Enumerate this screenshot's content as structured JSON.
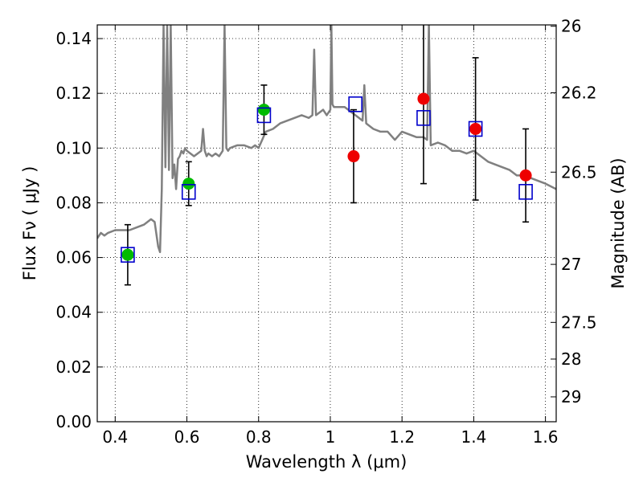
{
  "chart_data": {
    "type": "scatter",
    "xlabel": "Wavelength  λ (μm)",
    "ylabel": "Flux  Fν  ( μJy )",
    "y2label": "Magnitude (AB)",
    "xlim": [
      0.35,
      1.63
    ],
    "ylim": [
      0.0,
      0.145
    ],
    "grid": true,
    "x_ticks": [
      0.4,
      0.6,
      0.8,
      1.0,
      1.2,
      1.4,
      1.6
    ],
    "x_tick_labels": [
      "0.4",
      "0.6",
      "0.8",
      "1",
      "1.2",
      "1.4",
      "1.6"
    ],
    "y_ticks": [
      0.0,
      0.02,
      0.04,
      0.06,
      0.08,
      0.1,
      0.12,
      0.14
    ],
    "y_tick_labels": [
      "0.00",
      "0.02",
      "0.04",
      "0.06",
      "0.08",
      "0.10",
      "0.12",
      "0.14"
    ],
    "y2_ticks": [
      {
        "label": "26",
        "flux": 0.1445
      },
      {
        "label": "26.2",
        "flux": 0.1202
      },
      {
        "label": "26.5",
        "flux": 0.0912
      },
      {
        "label": "27",
        "flux": 0.0575
      },
      {
        "label": "27.5",
        "flux": 0.0363
      },
      {
        "label": "28",
        "flux": 0.0229
      },
      {
        "label": "29",
        "flux": 0.0091
      }
    ],
    "colors": {
      "model": "#808080",
      "green_points": "#00bb00",
      "red_points": "#ee0000",
      "model_squares": "#0000cc",
      "errorbars": "#000000"
    },
    "series": [
      {
        "type": "line",
        "color": "#808080",
        "x": [
          0.35,
          0.36,
          0.37,
          0.38,
          0.4,
          0.42,
          0.44,
          0.46,
          0.48,
          0.5,
          0.51,
          0.52,
          0.525,
          0.53,
          0.535,
          0.54,
          0.545,
          0.55,
          0.555,
          0.56,
          0.565,
          0.57,
          0.575,
          0.58,
          0.585,
          0.59,
          0.595,
          0.6,
          0.61,
          0.62,
          0.63,
          0.64,
          0.645,
          0.65,
          0.655,
          0.66,
          0.67,
          0.68,
          0.69,
          0.7,
          0.705,
          0.71,
          0.715,
          0.72,
          0.74,
          0.76,
          0.78,
          0.79,
          0.8,
          0.81,
          0.82,
          0.84,
          0.86,
          0.88,
          0.9,
          0.92,
          0.94,
          0.95,
          0.955,
          0.96,
          0.97,
          0.98,
          0.99,
          1.0,
          1.003,
          1.006,
          1.01,
          1.02,
          1.04,
          1.06,
          1.08,
          1.09,
          1.095,
          1.1,
          1.12,
          1.14,
          1.16,
          1.18,
          1.2,
          1.22,
          1.24,
          1.26,
          1.27,
          1.275,
          1.28,
          1.3,
          1.32,
          1.34,
          1.36,
          1.38,
          1.4,
          1.42,
          1.44,
          1.46,
          1.48,
          1.5,
          1.52,
          1.54,
          1.56,
          1.58,
          1.6,
          1.63
        ],
        "y": [
          0.067,
          0.069,
          0.068,
          0.069,
          0.07,
          0.07,
          0.07,
          0.071,
          0.072,
          0.074,
          0.073,
          0.064,
          0.062,
          0.085,
          0.145,
          0.093,
          0.145,
          0.092,
          0.145,
          0.089,
          0.094,
          0.085,
          0.096,
          0.097,
          0.099,
          0.098,
          0.1,
          0.099,
          0.098,
          0.097,
          0.098,
          0.099,
          0.107,
          0.099,
          0.097,
          0.098,
          0.097,
          0.098,
          0.097,
          0.099,
          0.145,
          0.1,
          0.099,
          0.1,
          0.101,
          0.101,
          0.1,
          0.101,
          0.1,
          0.103,
          0.106,
          0.107,
          0.109,
          0.11,
          0.111,
          0.112,
          0.111,
          0.112,
          0.136,
          0.112,
          0.113,
          0.114,
          0.112,
          0.114,
          0.145,
          0.116,
          0.115,
          0.115,
          0.115,
          0.113,
          0.111,
          0.11,
          0.123,
          0.109,
          0.107,
          0.106,
          0.106,
          0.103,
          0.106,
          0.105,
          0.104,
          0.104,
          0.103,
          0.145,
          0.101,
          0.102,
          0.101,
          0.099,
          0.099,
          0.098,
          0.099,
          0.097,
          0.095,
          0.094,
          0.093,
          0.092,
          0.09,
          0.09,
          0.089,
          0.088,
          0.087,
          0.085
        ]
      },
      {
        "type": "scatter",
        "marker": "circle",
        "color": "#00bb00",
        "x": [
          0.435,
          0.605,
          0.815
        ],
        "y": [
          0.061,
          0.087,
          0.114
        ],
        "yerr": [
          0.011,
          0.008,
          0.009
        ]
      },
      {
        "type": "scatter",
        "marker": "circle",
        "color": "#ee0000",
        "x": [
          1.065,
          1.26,
          1.405,
          1.545
        ],
        "y": [
          0.097,
          0.118,
          0.107,
          0.09
        ],
        "yerr": [
          0.017,
          0.031,
          0.026,
          0.017
        ]
      },
      {
        "type": "scatter",
        "marker": "square-open",
        "color": "#0000cc",
        "x": [
          0.435,
          0.605,
          0.815,
          1.07,
          1.26,
          1.405,
          1.545
        ],
        "y": [
          0.061,
          0.084,
          0.112,
          0.116,
          0.111,
          0.107,
          0.084
        ]
      }
    ]
  }
}
